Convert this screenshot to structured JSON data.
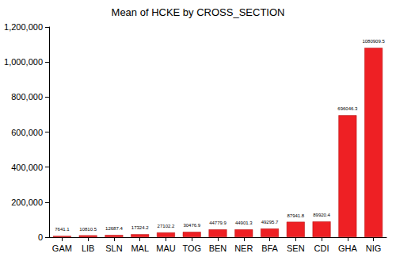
{
  "chart_data": {
    "type": "bar",
    "title": "Mean of HCKE by CROSS_SECTION",
    "categories": [
      "GAM",
      "LIB",
      "SLN",
      "MAL",
      "MAU",
      "TOG",
      "BEN",
      "NER",
      "BFA",
      "SEN",
      "CDI",
      "GHA",
      "NIG"
    ],
    "values": [
      7641.1,
      10810.5,
      12687.4,
      17324.2,
      27102.2,
      30476.9,
      44779.9,
      44901.3,
      49295.7,
      87941.8,
      89920.4,
      696046.3,
      1080909.5
    ],
    "color": "#ee2024",
    "ylim": [
      0,
      1200000
    ],
    "yticks": [
      0,
      {
        "value": 200000,
        "label": "200,000"
      },
      {
        "value": 400000,
        "label": "400,000"
      },
      {
        "value": 600000,
        "label": "600,000"
      },
      {
        "value": 800000,
        "label": "800,000"
      },
      {
        "value": 1000000,
        "label": "1,000,000"
      },
      {
        "value": 1200000,
        "label": "1,200,000"
      }
    ],
    "grid": false,
    "data_labels": true
  }
}
